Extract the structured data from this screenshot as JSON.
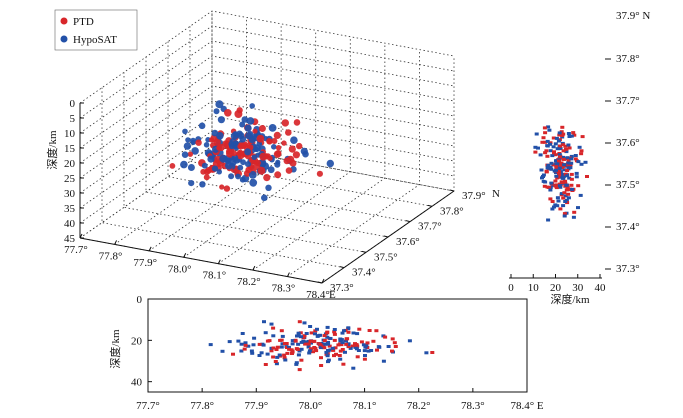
{
  "colors": {
    "ptd": "#d8262a",
    "hyposat": "#2250a8",
    "axis": "#111111",
    "grid": "#333333"
  },
  "chart_data": [
    {
      "id": "perspective3d",
      "type": "scatter",
      "title": "",
      "legend": {
        "placement": "top-left",
        "entries": [
          "PTD",
          "HypoSAT"
        ]
      },
      "zlabel": "深度/km",
      "z_ticks": [
        "0",
        "5",
        "10",
        "15",
        "20",
        "25",
        "30",
        "35",
        "40",
        "45"
      ],
      "x_ticks": [
        "77.7°",
        "77.8°",
        "77.9°",
        "78.0°",
        "78.1°",
        "78.2°",
        "78.3°",
        "78.4°"
      ],
      "x_end": "E",
      "y_ticks": [
        "37.3°",
        "37.4°",
        "37.5°",
        "37.6°",
        "37.7°",
        "37.8°",
        "37.9°"
      ],
      "y_end": "N",
      "xlim": [
        77.7,
        78.4
      ],
      "ylim": [
        37.3,
        37.9
      ],
      "zlim": [
        0,
        45
      ],
      "grid": true
    },
    {
      "id": "depth-latitude",
      "type": "scatter",
      "xlabel": "深度/km",
      "x_ticks": [
        "0",
        "10",
        "20",
        "30",
        "40"
      ],
      "y_ticks": [
        "37.3°",
        "37.4°",
        "37.5°",
        "37.6°",
        "37.7°",
        "37.8°"
      ],
      "y_top": "37.9° N",
      "xlim": [
        0,
        40
      ],
      "ylim": [
        37.3,
        37.9
      ]
    },
    {
      "id": "longitude-depth",
      "type": "scatter",
      "ylabel": "深度/km",
      "y_ticks": [
        "0",
        "20",
        "40"
      ],
      "x_ticks": [
        "77.7°",
        "77.8°",
        "77.9°",
        "78.0°",
        "78.1°",
        "78.2°",
        "78.3°"
      ],
      "x_end": "78.4° E",
      "xlim": [
        77.7,
        78.4
      ],
      "ylim": [
        0,
        45
      ]
    }
  ]
}
